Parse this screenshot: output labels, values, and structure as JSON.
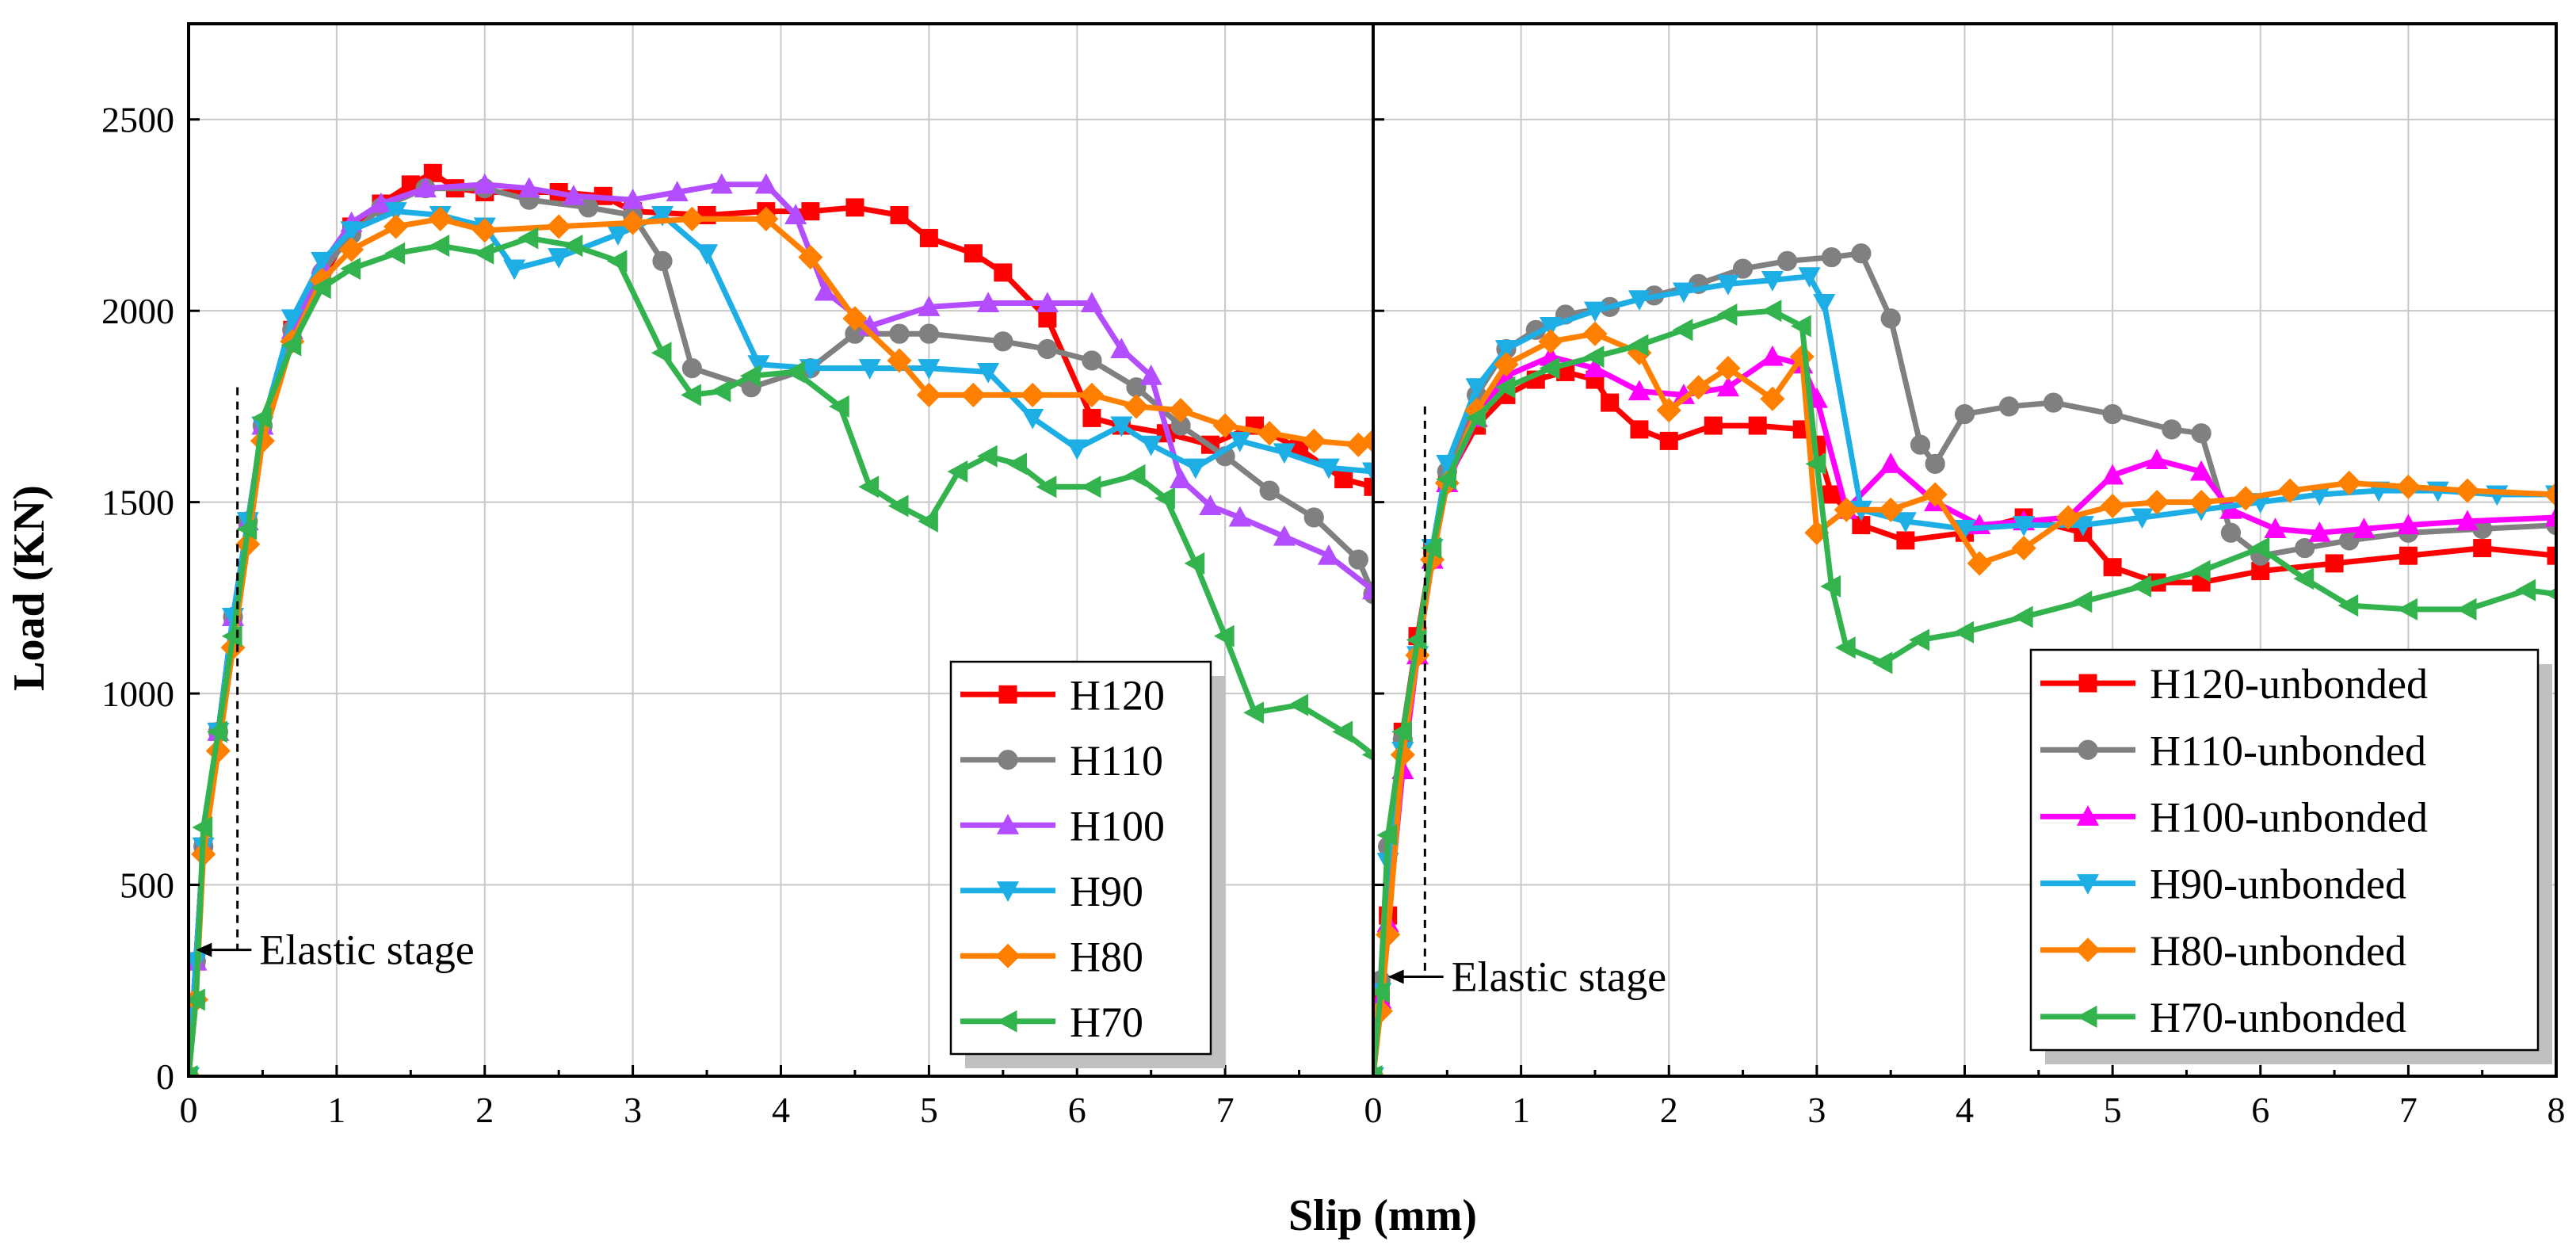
{
  "figure": {
    "xlabel": "Slip (mm)",
    "ylabel": "Load (KN)"
  },
  "chart_data": [
    {
      "type": "line",
      "panel": "left",
      "xlim": [
        0,
        8
      ],
      "ylim": [
        0,
        2750
      ],
      "xticks": [
        "0",
        "1",
        "2",
        "3",
        "4",
        "5",
        "6",
        "7"
      ],
      "yticks": [
        "0",
        "500",
        "1000",
        "1500",
        "2000",
        "2500"
      ],
      "grid": true,
      "legend_position": "bottom-right",
      "annotation": {
        "text": "Elastic stage",
        "arrow_to": [
          0.05,
          330
        ],
        "dashed_line_x": 0.33,
        "dashed_line_y": [
          330,
          1800
        ]
      },
      "series": [
        {
          "name": "H120",
          "color": "#ff0000",
          "marker": "square",
          "x": [
            0,
            0.05,
            0.1,
            0.2,
            0.3,
            0.4,
            0.5,
            0.7,
            0.9,
            1.1,
            1.3,
            1.5,
            1.65,
            1.8,
            2.0,
            2.5,
            2.8,
            3.0,
            3.5,
            3.9,
            4.2,
            4.5,
            4.8,
            5.0,
            5.3,
            5.5,
            5.8,
            6.1,
            6.3,
            6.6,
            6.9,
            7.2,
            7.5,
            7.8,
            8.0
          ],
          "y": [
            0,
            300,
            600,
            900,
            1200,
            1450,
            1700,
            1950,
            2080,
            2220,
            2280,
            2330,
            2360,
            2320,
            2310,
            2310,
            2300,
            2260,
            2250,
            2260,
            2260,
            2270,
            2250,
            2190,
            2150,
            2100,
            1980,
            1720,
            1700,
            1680,
            1650,
            1700,
            1640,
            1560,
            1540
          ]
        },
        {
          "name": "H110",
          "color": "#808080",
          "marker": "circle",
          "x": [
            0,
            0.05,
            0.1,
            0.2,
            0.3,
            0.4,
            0.5,
            0.7,
            0.9,
            1.1,
            1.3,
            1.6,
            2.0,
            2.3,
            2.7,
            3.0,
            3.2,
            3.4,
            3.8,
            4.2,
            4.5,
            4.8,
            5.0,
            5.5,
            5.8,
            6.1,
            6.4,
            6.7,
            7.0,
            7.3,
            7.6,
            7.9,
            8.0
          ],
          "y": [
            0,
            300,
            600,
            900,
            1200,
            1450,
            1700,
            1950,
            2100,
            2200,
            2270,
            2320,
            2320,
            2290,
            2270,
            2250,
            2130,
            1850,
            1800,
            1850,
            1940,
            1940,
            1940,
            1920,
            1900,
            1870,
            1800,
            1700,
            1620,
            1530,
            1460,
            1350,
            1260
          ]
        },
        {
          "name": "H100",
          "color": "#b34dff",
          "marker": "triangle-up",
          "x": [
            0,
            0.05,
            0.1,
            0.2,
            0.3,
            0.4,
            0.5,
            0.7,
            0.9,
            1.1,
            1.3,
            1.6,
            2.0,
            2.3,
            2.6,
            3.0,
            3.3,
            3.6,
            3.9,
            4.1,
            4.3,
            4.6,
            5.0,
            5.4,
            5.8,
            6.1,
            6.3,
            6.5,
            6.7,
            6.9,
            7.1,
            7.4,
            7.7,
            8.0
          ],
          "y": [
            0,
            300,
            600,
            900,
            1200,
            1450,
            1700,
            1950,
            2120,
            2230,
            2280,
            2320,
            2330,
            2320,
            2300,
            2290,
            2310,
            2330,
            2330,
            2250,
            2050,
            1960,
            2010,
            2020,
            2020,
            2020,
            1900,
            1830,
            1560,
            1490,
            1460,
            1410,
            1360,
            1270
          ]
        },
        {
          "name": "H90",
          "color": "#1eaee6",
          "marker": "triangle-down",
          "x": [
            0,
            0.05,
            0.1,
            0.2,
            0.3,
            0.4,
            0.5,
            0.7,
            0.9,
            1.1,
            1.4,
            1.7,
            2.0,
            2.2,
            2.5,
            2.9,
            3.2,
            3.5,
            3.85,
            4.2,
            4.6,
            5.0,
            5.4,
            5.7,
            6.0,
            6.3,
            6.5,
            6.8,
            7.1,
            7.4,
            7.7,
            8.0
          ],
          "y": [
            0,
            300,
            600,
            900,
            1200,
            1450,
            1700,
            1980,
            2130,
            2210,
            2260,
            2250,
            2220,
            2110,
            2140,
            2200,
            2250,
            2150,
            1860,
            1850,
            1850,
            1850,
            1840,
            1720,
            1640,
            1700,
            1650,
            1590,
            1660,
            1630,
            1590,
            1580
          ]
        },
        {
          "name": "H80",
          "color": "#ff8000",
          "marker": "diamond",
          "x": [
            0,
            0.05,
            0.1,
            0.2,
            0.3,
            0.4,
            0.5,
            0.7,
            0.9,
            1.1,
            1.4,
            1.7,
            2.0,
            2.5,
            3.0,
            3.4,
            3.9,
            4.2,
            4.5,
            4.8,
            5.0,
            5.3,
            5.7,
            6.1,
            6.4,
            6.7,
            7.0,
            7.3,
            7.6,
            7.9,
            8.0
          ],
          "y": [
            0,
            200,
            580,
            850,
            1120,
            1390,
            1660,
            1920,
            2080,
            2160,
            2220,
            2240,
            2210,
            2220,
            2230,
            2240,
            2240,
            2140,
            1980,
            1870,
            1780,
            1780,
            1780,
            1780,
            1750,
            1740,
            1700,
            1680,
            1660,
            1650,
            1660
          ]
        },
        {
          "name": "H70",
          "color": "#33b34d",
          "marker": "triangle-left",
          "x": [
            0,
            0.05,
            0.1,
            0.2,
            0.3,
            0.4,
            0.5,
            0.7,
            0.9,
            1.1,
            1.4,
            1.7,
            2.0,
            2.3,
            2.6,
            2.9,
            3.2,
            3.4,
            3.6,
            3.8,
            4.1,
            4.4,
            4.6,
            4.8,
            5.0,
            5.2,
            5.4,
            5.6,
            5.8,
            6.1,
            6.4,
            6.6,
            6.8,
            7.0,
            7.2,
            7.5,
            7.8,
            8.0
          ],
          "y": [
            0,
            200,
            650,
            900,
            1150,
            1430,
            1720,
            1910,
            2060,
            2110,
            2150,
            2170,
            2150,
            2190,
            2170,
            2130,
            1890,
            1780,
            1790,
            1830,
            1840,
            1750,
            1540,
            1490,
            1450,
            1580,
            1620,
            1600,
            1540,
            1540,
            1570,
            1510,
            1340,
            1150,
            950,
            970,
            900,
            840
          ]
        }
      ]
    },
    {
      "type": "line",
      "panel": "right",
      "xlim": [
        0,
        8
      ],
      "ylim": [
        0,
        2750
      ],
      "xticks": [
        "0",
        "1",
        "2",
        "3",
        "4",
        "5",
        "6",
        "7",
        "8"
      ],
      "yticks": [
        "0",
        "500",
        "1000",
        "1500",
        "2000",
        "2500"
      ],
      "grid": true,
      "legend_position": "bottom-right",
      "annotation": {
        "text": "Elastic stage",
        "arrow_to": [
          0.1,
          260
        ],
        "dashed_line_x": 0.35,
        "dashed_line_y": [
          260,
          1750
        ]
      },
      "series": [
        {
          "name": "H120-unbonded",
          "color": "#ff0000",
          "marker": "square",
          "x": [
            0,
            0.05,
            0.1,
            0.2,
            0.3,
            0.4,
            0.5,
            0.7,
            0.9,
            1.1,
            1.3,
            1.5,
            1.6,
            1.8,
            2.0,
            2.3,
            2.6,
            2.9,
            3.0,
            3.1,
            3.3,
            3.6,
            4.0,
            4.4,
            4.8,
            5.0,
            5.3,
            5.6,
            6.0,
            6.5,
            7.0,
            7.5,
            8.0
          ],
          "y": [
            0,
            200,
            420,
            900,
            1150,
            1380,
            1560,
            1700,
            1780,
            1820,
            1840,
            1820,
            1760,
            1690,
            1660,
            1700,
            1700,
            1690,
            1650,
            1520,
            1440,
            1400,
            1420,
            1460,
            1420,
            1330,
            1290,
            1290,
            1320,
            1340,
            1360,
            1380,
            1360
          ]
        },
        {
          "name": "H110-unbonded",
          "color": "#808080",
          "marker": "circle",
          "x": [
            0,
            0.05,
            0.1,
            0.2,
            0.3,
            0.4,
            0.5,
            0.7,
            0.9,
            1.1,
            1.3,
            1.6,
            1.9,
            2.2,
            2.5,
            2.8,
            3.1,
            3.3,
            3.5,
            3.7,
            3.8,
            4.0,
            4.3,
            4.6,
            5.0,
            5.4,
            5.6,
            5.8,
            6.0,
            6.3,
            6.6,
            7.0,
            7.5,
            8.0
          ],
          "y": [
            0,
            250,
            600,
            880,
            1100,
            1350,
            1580,
            1780,
            1900,
            1950,
            1990,
            2010,
            2040,
            2070,
            2110,
            2130,
            2140,
            2150,
            1980,
            1650,
            1600,
            1730,
            1750,
            1760,
            1730,
            1690,
            1680,
            1420,
            1360,
            1380,
            1400,
            1420,
            1430,
            1440
          ]
        },
        {
          "name": "H100-unbonded",
          "color": "#ff00ff",
          "marker": "triangle-up",
          "x": [
            0,
            0.05,
            0.1,
            0.2,
            0.3,
            0.4,
            0.5,
            0.7,
            0.9,
            1.2,
            1.5,
            1.8,
            2.1,
            2.4,
            2.7,
            2.9,
            3.0,
            3.2,
            3.5,
            3.8,
            4.1,
            4.4,
            4.7,
            5.0,
            5.3,
            5.6,
            5.8,
            6.1,
            6.4,
            6.7,
            7.0,
            7.4,
            8.0
          ],
          "y": [
            0,
            200,
            400,
            800,
            1100,
            1350,
            1550,
            1720,
            1830,
            1880,
            1850,
            1790,
            1780,
            1800,
            1880,
            1860,
            1770,
            1480,
            1600,
            1500,
            1440,
            1450,
            1460,
            1570,
            1610,
            1580,
            1480,
            1430,
            1420,
            1430,
            1440,
            1450,
            1460
          ]
        },
        {
          "name": "H90-unbonded",
          "color": "#1eaee6",
          "marker": "triangle-down",
          "x": [
            0,
            0.05,
            0.1,
            0.2,
            0.3,
            0.4,
            0.5,
            0.7,
            0.9,
            1.2,
            1.5,
            1.8,
            2.1,
            2.4,
            2.7,
            2.95,
            3.05,
            3.3,
            3.6,
            4.0,
            4.4,
            4.8,
            5.2,
            5.6,
            6.0,
            6.4,
            6.8,
            7.2,
            7.6,
            8.0
          ],
          "y": [
            0,
            220,
            560,
            850,
            1100,
            1380,
            1600,
            1800,
            1900,
            1960,
            2000,
            2030,
            2050,
            2070,
            2080,
            2090,
            2020,
            1480,
            1450,
            1430,
            1440,
            1440,
            1460,
            1480,
            1500,
            1520,
            1530,
            1530,
            1520,
            1520
          ]
        },
        {
          "name": "H80-unbonded",
          "color": "#ff8000",
          "marker": "diamond",
          "x": [
            0,
            0.05,
            0.1,
            0.2,
            0.3,
            0.4,
            0.5,
            0.7,
            0.9,
            1.2,
            1.5,
            1.8,
            2.0,
            2.2,
            2.4,
            2.7,
            2.9,
            3.0,
            3.2,
            3.5,
            3.8,
            4.1,
            4.4,
            4.7,
            5.0,
            5.3,
            5.6,
            5.9,
            6.2,
            6.6,
            7.0,
            7.4,
            8.0
          ],
          "y": [
            0,
            170,
            370,
            840,
            1100,
            1350,
            1550,
            1740,
            1860,
            1920,
            1940,
            1890,
            1740,
            1800,
            1850,
            1770,
            1880,
            1420,
            1480,
            1480,
            1520,
            1340,
            1380,
            1460,
            1490,
            1500,
            1500,
            1510,
            1530,
            1550,
            1540,
            1530,
            1520
          ]
        },
        {
          "name": "H70-unbonded",
          "color": "#33b34d",
          "marker": "triangle-left",
          "x": [
            0,
            0.05,
            0.1,
            0.2,
            0.3,
            0.4,
            0.5,
            0.7,
            0.9,
            1.2,
            1.5,
            1.8,
            2.1,
            2.4,
            2.7,
            2.9,
            3.0,
            3.1,
            3.2,
            3.45,
            3.7,
            4.0,
            4.4,
            4.8,
            5.2,
            5.6,
            6.0,
            6.3,
            6.6,
            7.0,
            7.4,
            7.8,
            8.0
          ],
          "y": [
            0,
            220,
            630,
            900,
            1140,
            1380,
            1560,
            1720,
            1800,
            1850,
            1880,
            1910,
            1950,
            1990,
            2000,
            1960,
            1600,
            1280,
            1120,
            1080,
            1140,
            1160,
            1200,
            1240,
            1280,
            1320,
            1380,
            1300,
            1230,
            1220,
            1220,
            1270,
            1260
          ]
        }
      ]
    }
  ]
}
